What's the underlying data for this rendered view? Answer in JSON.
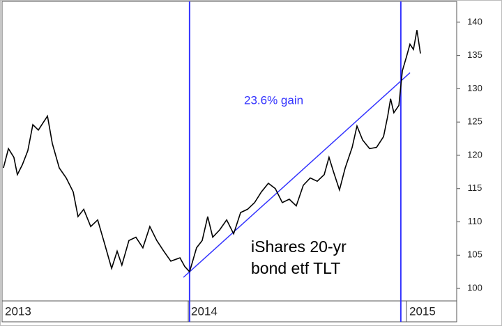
{
  "chart_data": {
    "type": "line",
    "x": [
      2013.153,
      2013.176,
      2013.201,
      2013.217,
      2013.24,
      2013.265,
      2013.288,
      2013.313,
      2013.355,
      2013.377,
      2013.409,
      2013.441,
      2013.473,
      2013.495,
      2013.521,
      2013.553,
      2013.585,
      2013.617,
      2013.649,
      2013.674,
      2013.696,
      2013.728,
      2013.76,
      2013.792,
      2013.824,
      2013.856,
      2013.888,
      2013.92,
      2013.962,
      2013.984,
      2014.006,
      2014.038,
      2014.064,
      2014.089,
      2014.112,
      2014.144,
      2014.176,
      2014.208,
      2014.24,
      2014.272,
      2014.304,
      2014.335,
      2014.367,
      2014.399,
      2014.431,
      2014.463,
      2014.495,
      2014.527,
      2014.559,
      2014.591,
      2014.623,
      2014.645,
      2014.665,
      2014.693,
      2014.719,
      2014.751,
      2014.773,
      2014.799,
      2014.831,
      2014.863,
      2014.895,
      2014.914,
      2014.927,
      2014.942,
      2014.965,
      2014.981,
      2015.0,
      2015.016,
      2015.032,
      2015.048,
      2015.064
    ],
    "series": [
      {
        "color": "#000000",
        "values": [
          118.1,
          121.0,
          119.7,
          117.1,
          118.6,
          120.7,
          124.6,
          123.8,
          125.9,
          121.8,
          118.1,
          116.6,
          114.5,
          110.8,
          111.9,
          109.3,
          110.3,
          106.7,
          103.0,
          105.6,
          103.5,
          107.2,
          107.7,
          106.1,
          109.3,
          107.2,
          105.6,
          104.1,
          104.6,
          103.3,
          102.5,
          106.1,
          107.2,
          110.8,
          107.7,
          108.8,
          110.3,
          108.2,
          111.4,
          111.9,
          112.9,
          114.5,
          115.8,
          115.0,
          112.9,
          113.4,
          112.4,
          115.5,
          116.6,
          116.1,
          117.1,
          119.7,
          117.6,
          114.8,
          118.1,
          121.2,
          124.4,
          122.3,
          121.0,
          121.2,
          122.8,
          125.9,
          128.5,
          126.4,
          127.5,
          132.7,
          134.8,
          136.7,
          135.9,
          138.8,
          135.3
        ]
      }
    ],
    "xlim": [
      2013.147,
      2015.23
    ],
    "ylim": [
      98.125,
      143.125
    ],
    "xticks": [
      2013,
      2014,
      2015
    ],
    "yticks": [
      100,
      105,
      110,
      115,
      120,
      125,
      130,
      135,
      140
    ],
    "y_axis_side": "right",
    "grid": false,
    "vlines": {
      "color": "#3333ff",
      "x": [
        2014.006,
        2014.974
      ]
    },
    "trendline": {
      "color": "#3333ff",
      "x": [
        2013.978,
        2015.016
      ],
      "y": [
        101.67,
        132.4
      ]
    },
    "annotations": [
      {
        "text": "23.6% gain",
        "color": "#3333ff"
      },
      {
        "lines": [
          "iShares 20-yr",
          "bond etf TLT"
        ],
        "color": "#000000"
      }
    ]
  }
}
